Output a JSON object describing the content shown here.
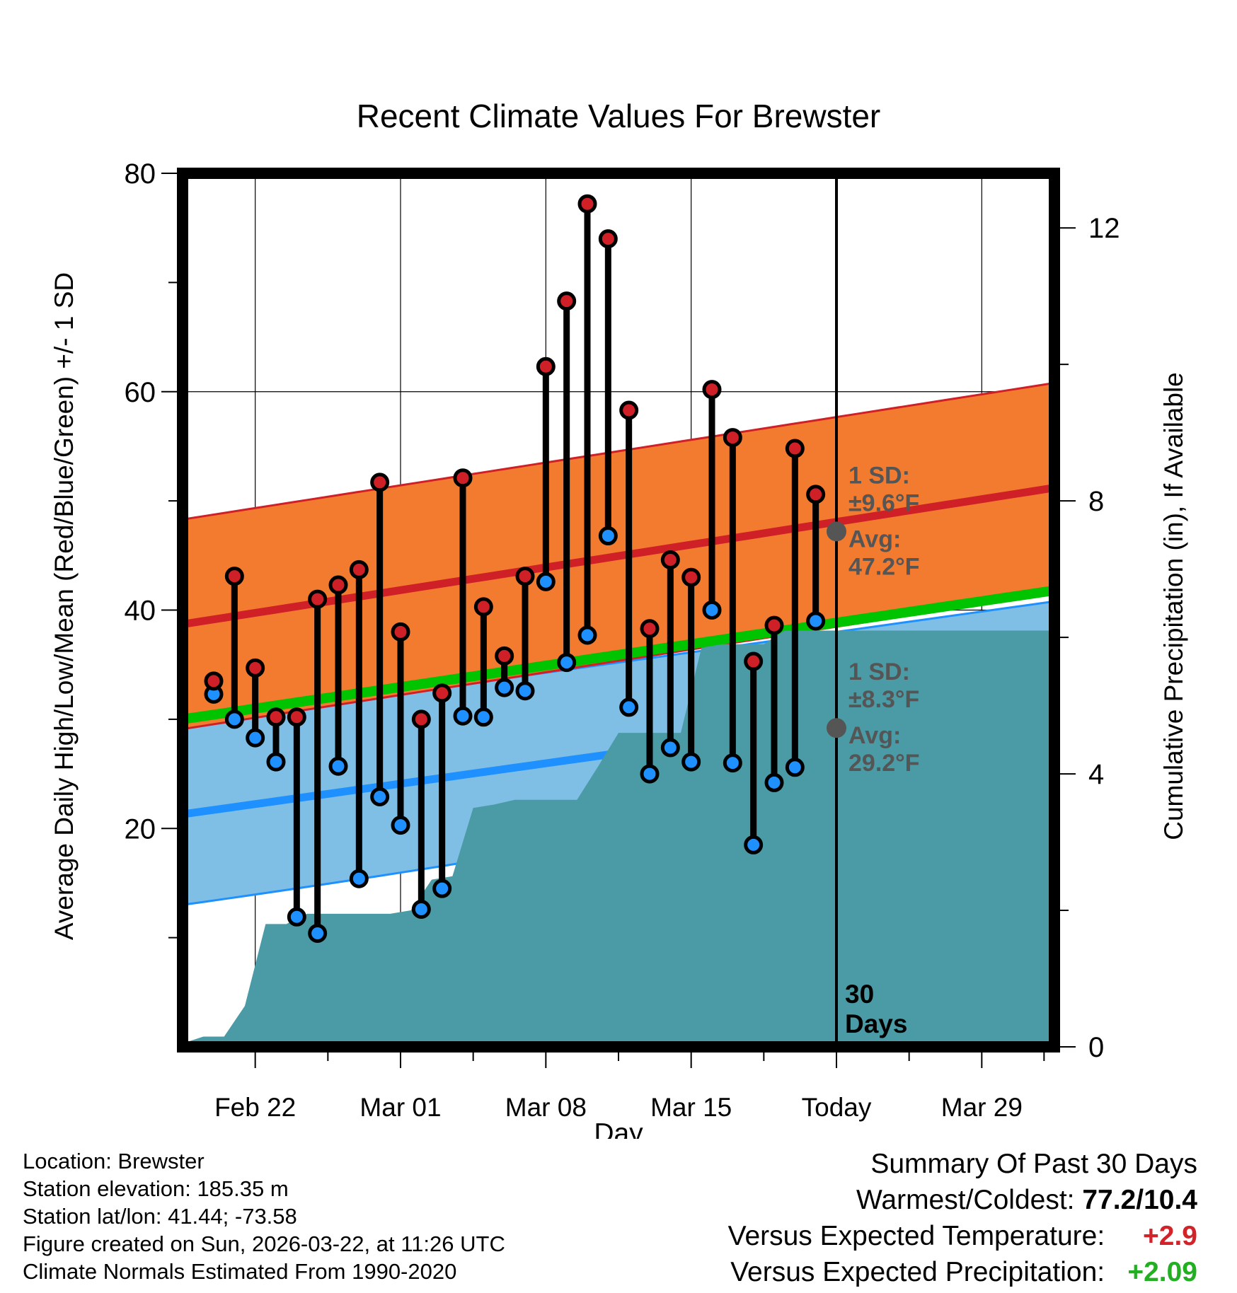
{
  "chart_data": {
    "type": "climate-daily-range",
    "title": "Recent Climate Values For Brewster",
    "xlabel": "Day",
    "ylabel": "Average Daily High/Low/Mean (Red/Blue/Green) +/- 1 SD",
    "y2label": "Cumulative Precipitation (in), If Available",
    "ylim": [
      0,
      80
    ],
    "y_ticks": [
      20,
      40,
      60,
      80
    ],
    "y2_ticks": [
      0,
      4,
      8,
      12
    ],
    "y2_per_temp_unit": 0.16,
    "x_range_days": [
      -31.5,
      10.5
    ],
    "x_ticks": [
      {
        "day": -28,
        "label": "Feb 22"
      },
      {
        "day": -21,
        "label": "Mar 01"
      },
      {
        "day": -14,
        "label": "Mar 08"
      },
      {
        "day": -7,
        "label": "Mar 15"
      },
      {
        "day": 0,
        "label": "Today"
      },
      {
        "day": 7,
        "label": "Mar 29"
      }
    ],
    "days": [
      -30,
      -29,
      -28,
      -27,
      -26,
      -25,
      -24,
      -23,
      -22,
      -21,
      -20,
      -19,
      -18,
      -17,
      -16,
      -15,
      -14,
      -13,
      -12,
      -11,
      -10,
      -9,
      -8,
      -7,
      -6,
      -5,
      -4,
      -3,
      -2,
      -1
    ],
    "highs": [
      33.5,
      43.1,
      34.7,
      30.2,
      30.2,
      41.0,
      42.3,
      43.7,
      51.7,
      38.0,
      30.0,
      32.4,
      52.1,
      40.3,
      35.8,
      43.1,
      62.3,
      68.3,
      77.2,
      74.0,
      58.3,
      38.3,
      44.6,
      43.0,
      60.2,
      55.8,
      35.3,
      38.6,
      54.8,
      50.6
    ],
    "lows": [
      32.3,
      30.0,
      28.3,
      26.1,
      11.9,
      10.4,
      25.7,
      15.4,
      22.9,
      20.3,
      12.6,
      14.5,
      30.3,
      30.2,
      32.9,
      32.6,
      42.6,
      35.2,
      37.7,
      46.8,
      31.1,
      25.0,
      27.4,
      26.1,
      40.0,
      26.0,
      18.5,
      24.2,
      25.6,
      39.0
    ],
    "normals": {
      "high_mean": [
        38.7,
        51.2
      ],
      "high_sd": 9.6,
      "low_mean": [
        21.3,
        32.5
      ],
      "low_sd": 8.3,
      "mean_mean": [
        30.0,
        41.8
      ]
    },
    "precip_cumulative": [
      {
        "day": -31.5,
        "in": 0.05
      },
      {
        "day": -30.5,
        "in": 0.15
      },
      {
        "day": -29.5,
        "in": 0.15
      },
      {
        "day": -28.5,
        "in": 0.6
      },
      {
        "day": -27.5,
        "in": 1.8
      },
      {
        "day": -26.5,
        "in": 1.8
      },
      {
        "day": -25.5,
        "in": 1.95
      },
      {
        "day": -21.5,
        "in": 1.95
      },
      {
        "day": -20.5,
        "in": 2.0
      },
      {
        "day": -19.5,
        "in": 2.45
      },
      {
        "day": -18.5,
        "in": 2.5
      },
      {
        "day": -17.5,
        "in": 3.5
      },
      {
        "day": -16.5,
        "in": 3.55
      },
      {
        "day": -15.5,
        "in": 3.62
      },
      {
        "day": -12.5,
        "in": 3.62
      },
      {
        "day": -11.5,
        "in": 4.1
      },
      {
        "day": -10.5,
        "in": 4.6
      },
      {
        "day": -9.5,
        "in": 4.6
      },
      {
        "day": -7.5,
        "in": 4.6
      },
      {
        "day": -6.5,
        "in": 5.85
      },
      {
        "day": -5.5,
        "in": 5.9
      },
      {
        "day": -3.5,
        "in": 5.9
      },
      {
        "day": -2.5,
        "in": 6.1
      },
      {
        "day": 10.5,
        "in": 6.1
      }
    ],
    "annotations": {
      "high_sd_label": "1 SD:",
      "high_sd_value": "±9.6°F",
      "high_avg_label": "Avg:",
      "high_avg_value": "47.2°F",
      "low_sd_label": "1 SD:",
      "low_sd_value": "±8.3°F",
      "low_avg_label": "Avg:",
      "low_avg_value": "29.2°F",
      "high_avg_marker": 47.2,
      "low_avg_marker": 29.2,
      "window_line1": "30",
      "window_line2": "Days"
    },
    "colors": {
      "high_band": "#f37b30",
      "high_line": "#cf2027",
      "low_band": "#7fbfe6",
      "low_line": "#1e90ff",
      "mean_line": "#00c400",
      "precip": "#4a9ba5",
      "high_dot": "#cf2027",
      "low_dot": "#1e90ff",
      "marker": "#555555",
      "annotation": "#555555",
      "warm": "#d2232a",
      "wet": "#22b022"
    }
  },
  "info": {
    "location": "Location: Brewster",
    "elevation": "Station elevation: 185.35 m",
    "latlon": "Station lat/lon: 41.44; -73.58",
    "created": "Figure created on Sun, 2026-03-22, at 11:26 UTC",
    "normals": "Climate Normals Estimated From 1990-2020"
  },
  "summary": {
    "title": "Summary Of Past 30 Days",
    "warmest_label": "Warmest/Coldest:",
    "warmest_value": "77.2/10.4",
    "temp_label": "Versus Expected Temperature:",
    "temp_value": "+2.9",
    "precip_label": "Versus Expected Precipitation:",
    "precip_value": "+2.09"
  }
}
